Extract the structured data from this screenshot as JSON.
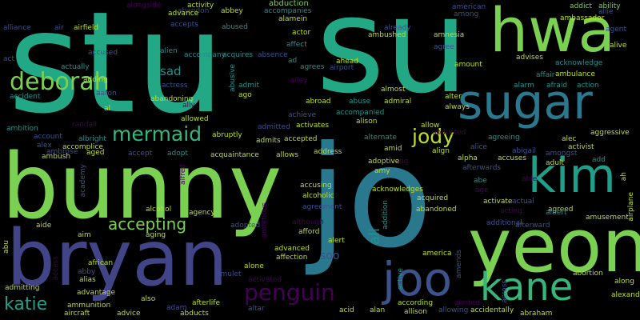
{
  "colors": {
    "background": "#000000",
    "palette": [
      "#22a884",
      "#7ad151",
      "#2a788e",
      "#414487",
      "#440154",
      "#35b779",
      "#fde725",
      "#3b528b",
      "#1f9e89",
      "#21918c",
      "#bddf26",
      "#482878"
    ]
  },
  "words": [
    "stu",
    "su",
    "jo",
    "bunny",
    "bryan",
    "yeon",
    "hwa",
    "sugar",
    "kim",
    "kane",
    "joo",
    "deborah",
    "mermaid",
    "jody",
    "penguin",
    "accepting",
    "katie",
    "ali",
    "soo",
    "sad",
    "alongside",
    "activity",
    "abbey",
    "abduction",
    "american",
    "ambassador",
    "addict",
    "ability",
    "allie",
    "alliance",
    "air",
    "airfield",
    "abandon",
    "accompanies",
    "among",
    "agent",
    "advance",
    "alamein",
    "actor",
    "already",
    "ambushed",
    "amnesia",
    "accepts",
    "abused",
    "alien",
    "accompany",
    "acquires",
    "absence",
    "affect",
    "agree",
    "alive",
    "acknowledge",
    "act",
    "accused",
    "actually",
    "ahead",
    "ad",
    "agrees",
    "airport",
    "amount",
    "advises",
    "ambulance",
    "affair",
    "afraid",
    "action",
    "adding",
    "aaron",
    "actress",
    "admit",
    "alley",
    "almost",
    "accident",
    "abandoning",
    "abusive",
    "ago",
    "abroad",
    "abuse",
    "admiral",
    "alter",
    "alarm",
    "always",
    "ally",
    "al",
    "achieve",
    "accompanied",
    "allowed",
    "admitted",
    "alison",
    "allow",
    "ambition",
    "randall",
    "abruptly",
    "activates",
    "aggressive",
    "account",
    "alec",
    "alex",
    "albright",
    "accomplice",
    "acquaintance",
    "admits",
    "accepted",
    "alternate",
    "abducted",
    "agreeing",
    "ambrose",
    "ambush",
    "aged",
    "accept",
    "adopt",
    "allows",
    "amid",
    "address",
    "alice",
    "activist",
    "abigail",
    "aang",
    "amongst",
    "accuses",
    "alpha",
    "adult",
    "adoptive",
    "align",
    "afterwards",
    "add",
    "academy",
    "alfred",
    "amy",
    "abe",
    "accusing",
    "age",
    "able",
    "alcohol",
    "alcoholic",
    "acknowledges",
    "activate",
    "actual",
    "agreed",
    "ah",
    "agency",
    "agreement",
    "acquired",
    "albert",
    "amusement",
    "aide",
    "acting",
    "abandoned",
    "aim",
    "aging",
    "additional",
    "afterward",
    "airplane",
    "adopted",
    "although",
    "ambitious",
    "addition",
    "afford",
    "alert",
    "abu",
    "alone",
    "advanced",
    "affection",
    "america",
    "african",
    "abby",
    "alias",
    "admitting",
    "access",
    "advantage",
    "amulet",
    "activated",
    "amends",
    "abortion",
    "also",
    "active",
    "according",
    "alerted",
    "along",
    "ammunition",
    "afterlife",
    "across",
    "alexander",
    "aircraft",
    "advice",
    "adam",
    "abducts",
    "altar",
    "acid",
    "alan",
    "allison",
    "allowing",
    "accidentally",
    "abraham"
  ]
}
